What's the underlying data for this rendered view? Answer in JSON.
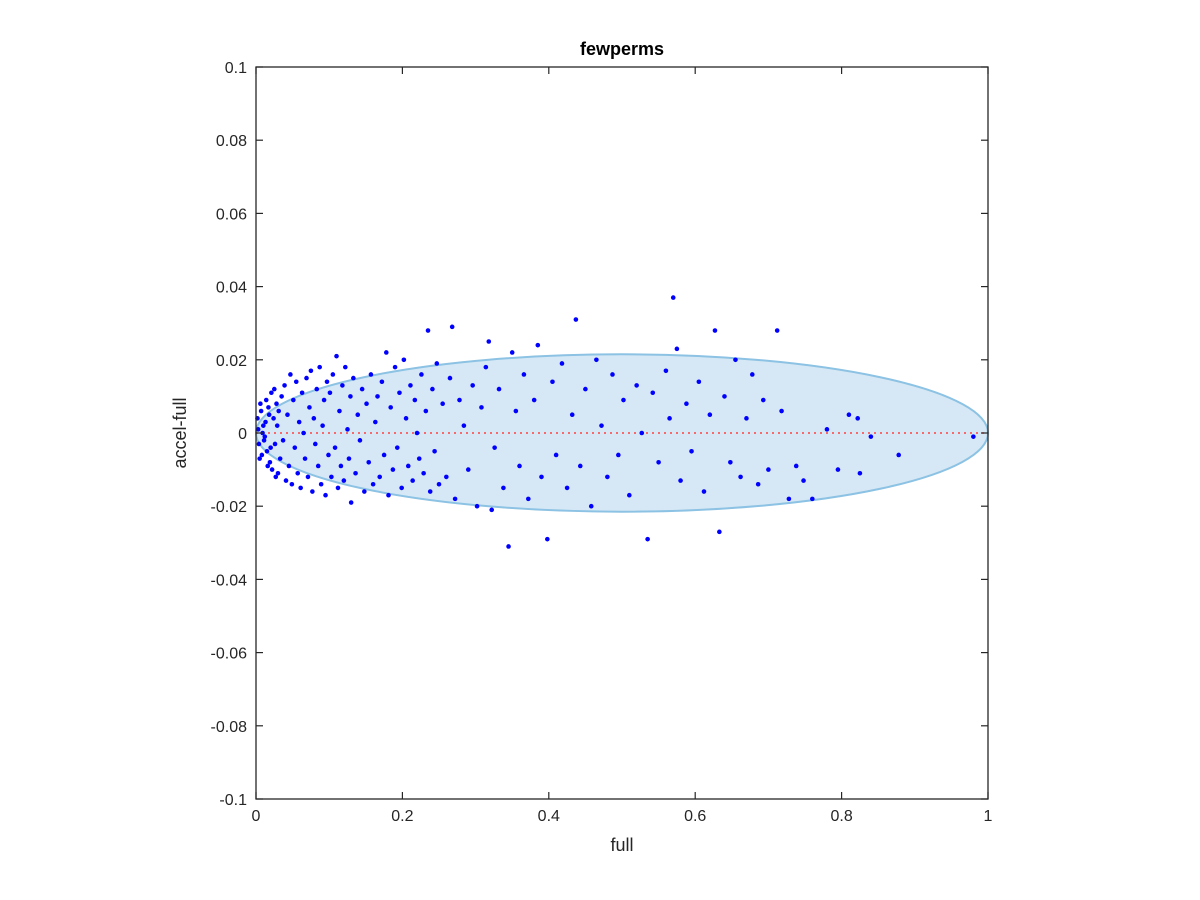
{
  "chart_data": {
    "type": "scatter",
    "title": "fewperms",
    "xlabel": "full",
    "ylabel": "accel-full",
    "xlim": [
      0,
      1
    ],
    "ylim": [
      -0.1,
      0.1
    ],
    "xticks": [
      0,
      0.2,
      0.4,
      0.6,
      0.8,
      1
    ],
    "xtick_labels": [
      "0",
      "0.2",
      "0.4",
      "0.6",
      "0.8",
      "1"
    ],
    "yticks": [
      -0.1,
      -0.08,
      -0.06,
      -0.04,
      -0.02,
      0,
      0.02,
      0.04,
      0.06,
      0.08,
      0.1
    ],
    "ytick_labels": [
      "-0.1",
      "-0.08",
      "-0.06",
      "-0.04",
      "-0.02",
      "0",
      "0.02",
      "0.04",
      "0.06",
      "0.08",
      "0.1"
    ],
    "grid": false,
    "colors": {
      "points": "#0000ff",
      "ellipse_fill": "#d6e8f5",
      "ellipse_edge": "#8cc2e3",
      "reference_line": "#ff4040",
      "axes": "#262626"
    },
    "ellipse": {
      "center": [
        0.5,
        0
      ],
      "radius_x": 0.5,
      "radius_y": 0.0215
    },
    "reference_line": {
      "y": 0,
      "x": [
        0,
        1
      ],
      "style": "dotted"
    },
    "points": [
      [
        0.002,
        0.004
      ],
      [
        0.004,
        -0.003
      ],
      [
        0.006,
        0.008
      ],
      [
        0.008,
        -0.006
      ],
      [
        0.01,
        0.002
      ],
      [
        0.012,
        -0.001
      ],
      [
        0.014,
        0.009
      ],
      [
        0.016,
        -0.009
      ],
      [
        0.018,
        0.005
      ],
      [
        0.02,
        -0.004
      ],
      [
        0.003,
        0.001
      ],
      [
        0.005,
        -0.007
      ],
      [
        0.007,
        0.006
      ],
      [
        0.009,
        0.0
      ],
      [
        0.011,
        -0.002
      ],
      [
        0.013,
        0.003
      ],
      [
        0.015,
        -0.005
      ],
      [
        0.017,
        0.007
      ],
      [
        0.019,
        -0.008
      ],
      [
        0.021,
        0.011
      ],
      [
        0.022,
        -0.01
      ],
      [
        0.024,
        0.004
      ],
      [
        0.026,
        -0.003
      ],
      [
        0.028,
        0.008
      ],
      [
        0.03,
        -0.011
      ],
      [
        0.025,
        0.012
      ],
      [
        0.027,
        -0.012
      ],
      [
        0.029,
        0.002
      ],
      [
        0.031,
        0.006
      ],
      [
        0.033,
        -0.007
      ],
      [
        0.035,
        0.01
      ],
      [
        0.037,
        -0.002
      ],
      [
        0.039,
        0.013
      ],
      [
        0.041,
        -0.013
      ],
      [
        0.043,
        0.005
      ],
      [
        0.045,
        -0.009
      ],
      [
        0.047,
        0.016
      ],
      [
        0.049,
        -0.014
      ],
      [
        0.051,
        0.009
      ],
      [
        0.053,
        -0.004
      ],
      [
        0.055,
        0.014
      ],
      [
        0.057,
        -0.011
      ],
      [
        0.059,
        0.003
      ],
      [
        0.061,
        -0.015
      ],
      [
        0.063,
        0.011
      ],
      [
        0.065,
        0.0
      ],
      [
        0.067,
        -0.007
      ],
      [
        0.069,
        0.015
      ],
      [
        0.071,
        -0.012
      ],
      [
        0.073,
        0.007
      ],
      [
        0.075,
        0.017
      ],
      [
        0.077,
        -0.016
      ],
      [
        0.079,
        0.004
      ],
      [
        0.081,
        -0.003
      ],
      [
        0.083,
        0.012
      ],
      [
        0.085,
        -0.009
      ],
      [
        0.087,
        0.018
      ],
      [
        0.089,
        -0.014
      ],
      [
        0.091,
        0.002
      ],
      [
        0.093,
        0.009
      ],
      [
        0.095,
        -0.017
      ],
      [
        0.097,
        0.014
      ],
      [
        0.099,
        -0.006
      ],
      [
        0.101,
        0.011
      ],
      [
        0.103,
        -0.012
      ],
      [
        0.105,
        0.016
      ],
      [
        0.108,
        -0.004
      ],
      [
        0.11,
        0.021
      ],
      [
        0.112,
        -0.015
      ],
      [
        0.114,
        0.006
      ],
      [
        0.116,
        -0.009
      ],
      [
        0.118,
        0.013
      ],
      [
        0.12,
        -0.013
      ],
      [
        0.122,
        0.018
      ],
      [
        0.125,
        0.001
      ],
      [
        0.127,
        -0.007
      ],
      [
        0.129,
        0.01
      ],
      [
        0.13,
        -0.019
      ],
      [
        0.133,
        0.015
      ],
      [
        0.136,
        -0.011
      ],
      [
        0.139,
        0.005
      ],
      [
        0.142,
        -0.002
      ],
      [
        0.145,
        0.012
      ],
      [
        0.148,
        -0.016
      ],
      [
        0.151,
        0.008
      ],
      [
        0.154,
        -0.008
      ],
      [
        0.157,
        0.016
      ],
      [
        0.16,
        -0.014
      ],
      [
        0.163,
        0.003
      ],
      [
        0.166,
        0.01
      ],
      [
        0.169,
        -0.012
      ],
      [
        0.172,
        0.014
      ],
      [
        0.175,
        -0.006
      ],
      [
        0.178,
        0.022
      ],
      [
        0.181,
        -0.017
      ],
      [
        0.184,
        0.007
      ],
      [
        0.187,
        -0.01
      ],
      [
        0.19,
        0.018
      ],
      [
        0.193,
        -0.004
      ],
      [
        0.196,
        0.011
      ],
      [
        0.199,
        -0.015
      ],
      [
        0.202,
        0.02
      ],
      [
        0.205,
        0.004
      ],
      [
        0.208,
        -0.009
      ],
      [
        0.211,
        0.013
      ],
      [
        0.214,
        -0.013
      ],
      [
        0.217,
        0.009
      ],
      [
        0.22,
        0.0
      ],
      [
        0.223,
        -0.007
      ],
      [
        0.226,
        0.016
      ],
      [
        0.229,
        -0.011
      ],
      [
        0.232,
        0.006
      ],
      [
        0.235,
        0.028
      ],
      [
        0.238,
        -0.016
      ],
      [
        0.241,
        0.012
      ],
      [
        0.244,
        -0.005
      ],
      [
        0.247,
        0.019
      ],
      [
        0.25,
        -0.014
      ],
      [
        0.255,
        0.008
      ],
      [
        0.26,
        -0.012
      ],
      [
        0.265,
        0.015
      ],
      [
        0.268,
        0.029
      ],
      [
        0.272,
        -0.018
      ],
      [
        0.278,
        0.009
      ],
      [
        0.284,
        0.002
      ],
      [
        0.29,
        -0.01
      ],
      [
        0.296,
        0.013
      ],
      [
        0.302,
        -0.02
      ],
      [
        0.308,
        0.007
      ],
      [
        0.314,
        0.018
      ],
      [
        0.318,
        0.025
      ],
      [
        0.322,
        -0.021
      ],
      [
        0.326,
        -0.004
      ],
      [
        0.332,
        0.012
      ],
      [
        0.338,
        -0.015
      ],
      [
        0.345,
        -0.031
      ],
      [
        0.35,
        0.022
      ],
      [
        0.355,
        0.006
      ],
      [
        0.36,
        -0.009
      ],
      [
        0.366,
        0.016
      ],
      [
        0.372,
        -0.018
      ],
      [
        0.38,
        0.009
      ],
      [
        0.385,
        0.024
      ],
      [
        0.39,
        -0.012
      ],
      [
        0.398,
        -0.029
      ],
      [
        0.405,
        0.014
      ],
      [
        0.41,
        -0.006
      ],
      [
        0.418,
        0.019
      ],
      [
        0.425,
        -0.015
      ],
      [
        0.432,
        0.005
      ],
      [
        0.437,
        0.031
      ],
      [
        0.443,
        -0.009
      ],
      [
        0.45,
        0.012
      ],
      [
        0.458,
        -0.02
      ],
      [
        0.465,
        0.02
      ],
      [
        0.472,
        0.002
      ],
      [
        0.48,
        -0.012
      ],
      [
        0.487,
        0.016
      ],
      [
        0.495,
        -0.006
      ],
      [
        0.502,
        0.009
      ],
      [
        0.51,
        -0.017
      ],
      [
        0.52,
        0.013
      ],
      [
        0.527,
        0.0
      ],
      [
        0.535,
        -0.029
      ],
      [
        0.542,
        0.011
      ],
      [
        0.55,
        -0.008
      ],
      [
        0.56,
        0.017
      ],
      [
        0.565,
        0.004
      ],
      [
        0.57,
        0.037
      ],
      [
        0.575,
        0.023
      ],
      [
        0.58,
        -0.013
      ],
      [
        0.588,
        0.008
      ],
      [
        0.595,
        -0.005
      ],
      [
        0.605,
        0.014
      ],
      [
        0.612,
        -0.016
      ],
      [
        0.62,
        0.005
      ],
      [
        0.627,
        0.028
      ],
      [
        0.633,
        -0.027
      ],
      [
        0.64,
        0.01
      ],
      [
        0.648,
        -0.008
      ],
      [
        0.655,
        0.02
      ],
      [
        0.662,
        -0.012
      ],
      [
        0.67,
        0.004
      ],
      [
        0.678,
        0.016
      ],
      [
        0.686,
        -0.014
      ],
      [
        0.693,
        0.009
      ],
      [
        0.7,
        -0.01
      ],
      [
        0.712,
        0.028
      ],
      [
        0.718,
        0.006
      ],
      [
        0.728,
        -0.018
      ],
      [
        0.738,
        -0.009
      ],
      [
        0.748,
        -0.013
      ],
      [
        0.76,
        -0.018
      ],
      [
        0.78,
        0.001
      ],
      [
        0.795,
        -0.01
      ],
      [
        0.81,
        0.005
      ],
      [
        0.822,
        0.004
      ],
      [
        0.825,
        -0.011
      ],
      [
        0.84,
        -0.001
      ],
      [
        0.878,
        -0.006
      ],
      [
        0.98,
        -0.001
      ]
    ]
  }
}
